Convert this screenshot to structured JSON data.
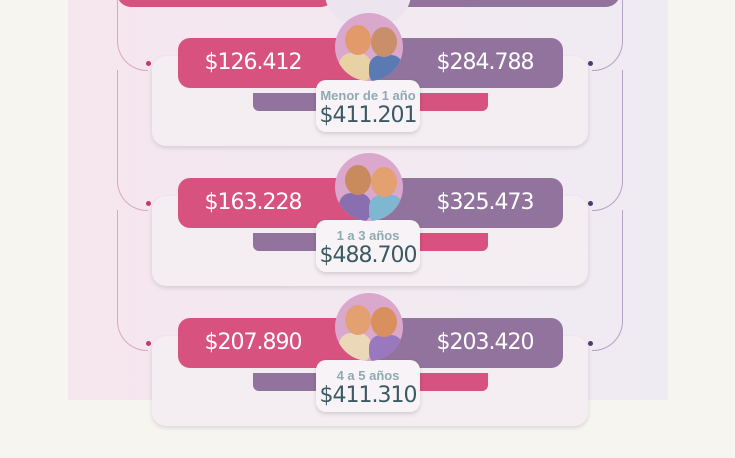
{
  "colors": {
    "pink": "#d8527f",
    "purple": "#92739d",
    "total": "#3c5a64",
    "age": "#8eaab2"
  },
  "rows": [
    {
      "age": "Menor de 1 año",
      "left": "$126.412",
      "right": "$284.788",
      "total": "$411.201",
      "icon": "babies-avatar-icon"
    },
    {
      "age": "1 a 3 años",
      "left": "$163.228",
      "right": "$325.473",
      "total": "$488.700",
      "icon": "toddlers-avatar-icon"
    },
    {
      "age": "4 a 5 años",
      "left": "$207.890",
      "right": "$203.420",
      "total": "$411.310",
      "icon": "children-avatar-icon"
    }
  ]
}
